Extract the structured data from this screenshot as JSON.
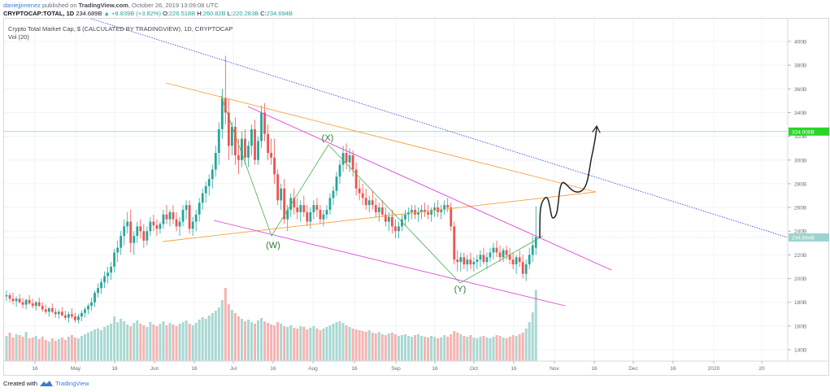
{
  "header": {
    "author": "daniejjimenez",
    "published_text": "published on",
    "site": "TradingView.com",
    "timestamp": ", October 26, 2019 13:09:08 UTC"
  },
  "ohlc": {
    "symbol": "CRYPTOCAP:TOTAL, 1D",
    "last": "234.689B",
    "change": "+8.839B (+3.82%)",
    "o_label": "O:",
    "o": "226.518B",
    "h_label": "H:",
    "h": "260.82B",
    "l_label": "L:",
    "l": "220.283B",
    "c_label": "C:",
    "c": "234.694B"
  },
  "legend": {
    "title": "Crypto Total Market Cap, $ (CALCULATED BY TRADINGVIEW), 1D, CRYPTOCAP",
    "volume": "Vol (20)"
  },
  "footer": {
    "created_with": "Created with",
    "brand": "TradingView"
  },
  "colors": {
    "up": "#26a69a",
    "down": "#ef5350",
    "vol_up": "#a8d8d2",
    "vol_down": "#f6b3b1",
    "orange": "#f7a13a",
    "magenta": "#e040d8",
    "blue_dotted": "#3f51d8",
    "wave_green": "#4caf50",
    "target_line": "#7ee37e",
    "target_label": "#27d627",
    "price_label": "#9bd5ce"
  },
  "chart_data": {
    "type": "candlestick",
    "y_axis_ticks": [
      "400B",
      "380B",
      "360B",
      "340B",
      "320B",
      "300B",
      "280B",
      "260B",
      "240B",
      "220B",
      "200B",
      "180B",
      "160B",
      "140B"
    ],
    "x_axis_ticks": [
      "16",
      "May",
      "16",
      "Jun",
      "16",
      "Jul",
      "16",
      "Aug",
      "16",
      "Sep",
      "16",
      "Oct",
      "16",
      "Nov",
      "16",
      "Dec",
      "16",
      "2020",
      "20"
    ],
    "price_labels": {
      "target": "324.008B",
      "current": "234.694B"
    },
    "annotations": [
      "(W)",
      "(X)",
      "(Y)"
    ],
    "ylim": [
      130,
      410
    ],
    "ohlc_series": [
      [
        185,
        190,
        181,
        186
      ],
      [
        186,
        188,
        180,
        183
      ],
      [
        183,
        188,
        178,
        181
      ],
      [
        181,
        185,
        176,
        183
      ],
      [
        183,
        187,
        179,
        180
      ],
      [
        180,
        184,
        175,
        178
      ],
      [
        178,
        183,
        174,
        182
      ],
      [
        182,
        186,
        178,
        179
      ],
      [
        179,
        183,
        175,
        177
      ],
      [
        177,
        181,
        173,
        180
      ],
      [
        180,
        184,
        176,
        177
      ],
      [
        177,
        180,
        172,
        174
      ],
      [
        174,
        178,
        170,
        172
      ],
      [
        172,
        176,
        168,
        175
      ],
      [
        175,
        179,
        171,
        172
      ],
      [
        172,
        175,
        167,
        170
      ],
      [
        170,
        174,
        166,
        172
      ],
      [
        172,
        176,
        168,
        169
      ],
      [
        169,
        173,
        165,
        167
      ],
      [
        167,
        172,
        163,
        170
      ],
      [
        170,
        175,
        166,
        168
      ],
      [
        168,
        171,
        163,
        165
      ],
      [
        165,
        170,
        162,
        168
      ],
      [
        168,
        173,
        164,
        171
      ],
      [
        171,
        176,
        167,
        174
      ],
      [
        174,
        179,
        170,
        177
      ],
      [
        177,
        184,
        173,
        180
      ],
      [
        180,
        190,
        176,
        188
      ],
      [
        188,
        196,
        184,
        192
      ],
      [
        192,
        200,
        187,
        197
      ],
      [
        197,
        206,
        192,
        202
      ],
      [
        202,
        210,
        196,
        205
      ],
      [
        205,
        214,
        199,
        210
      ],
      [
        210,
        225,
        205,
        222
      ],
      [
        222,
        232,
        214,
        226
      ],
      [
        226,
        240,
        220,
        236
      ],
      [
        236,
        250,
        228,
        244
      ],
      [
        244,
        256,
        238,
        248
      ],
      [
        248,
        258,
        222,
        230
      ],
      [
        230,
        240,
        220,
        236
      ],
      [
        236,
        248,
        230,
        244
      ],
      [
        244,
        250,
        234,
        240
      ],
      [
        240,
        246,
        226,
        232
      ],
      [
        232,
        244,
        228,
        240
      ],
      [
        240,
        252,
        236,
        248
      ],
      [
        248,
        254,
        240,
        245
      ],
      [
        245,
        250,
        236,
        242
      ],
      [
        242,
        248,
        238,
        246
      ],
      [
        246,
        258,
        242,
        254
      ],
      [
        254,
        262,
        246,
        250
      ],
      [
        250,
        258,
        244,
        256
      ],
      [
        256,
        262,
        246,
        250
      ],
      [
        250,
        256,
        240,
        244
      ],
      [
        244,
        252,
        236,
        248
      ],
      [
        248,
        262,
        244,
        258
      ],
      [
        258,
        266,
        250,
        262
      ],
      [
        262,
        266,
        238,
        242
      ],
      [
        242,
        252,
        236,
        248
      ],
      [
        248,
        258,
        240,
        254
      ],
      [
        254,
        268,
        248,
        264
      ],
      [
        264,
        276,
        258,
        272
      ],
      [
        272,
        282,
        264,
        278
      ],
      [
        278,
        288,
        270,
        284
      ],
      [
        284,
        296,
        276,
        292
      ],
      [
        292,
        312,
        286,
        306
      ],
      [
        306,
        332,
        296,
        326
      ],
      [
        326,
        360,
        318,
        352
      ],
      [
        352,
        388,
        330,
        340
      ],
      [
        340,
        352,
        300,
        312
      ],
      [
        312,
        332,
        304,
        328
      ],
      [
        328,
        336,
        296,
        304
      ],
      [
        304,
        318,
        288,
        300
      ],
      [
        300,
        324,
        294,
        318
      ],
      [
        318,
        326,
        296,
        302
      ],
      [
        302,
        316,
        294,
        312
      ],
      [
        312,
        330,
        304,
        326
      ],
      [
        326,
        334,
        296,
        300
      ],
      [
        300,
        320,
        296,
        316
      ],
      [
        316,
        346,
        310,
        340
      ],
      [
        340,
        348,
        316,
        322
      ],
      [
        322,
        330,
        300,
        306
      ],
      [
        306,
        318,
        296,
        302
      ],
      [
        302,
        318,
        280,
        288
      ],
      [
        288,
        292,
        262,
        266
      ],
      [
        266,
        280,
        258,
        276
      ],
      [
        276,
        284,
        246,
        250
      ],
      [
        250,
        262,
        240,
        258
      ],
      [
        258,
        272,
        252,
        268
      ],
      [
        268,
        276,
        254,
        260
      ],
      [
        260,
        268,
        250,
        256
      ],
      [
        256,
        266,
        248,
        262
      ],
      [
        262,
        270,
        252,
        256
      ],
      [
        256,
        262,
        244,
        248
      ],
      [
        248,
        260,
        242,
        256
      ],
      [
        256,
        266,
        250,
        262
      ],
      [
        262,
        268,
        252,
        258
      ],
      [
        258,
        262,
        246,
        250
      ],
      [
        250,
        258,
        244,
        254
      ],
      [
        254,
        262,
        250,
        258
      ],
      [
        258,
        272,
        254,
        268
      ],
      [
        268,
        278,
        262,
        274
      ],
      [
        274,
        290,
        270,
        286
      ],
      [
        286,
        300,
        280,
        296
      ],
      [
        296,
        312,
        290,
        306
      ],
      [
        306,
        314,
        292,
        298
      ],
      [
        298,
        310,
        290,
        304
      ],
      [
        304,
        308,
        286,
        292
      ],
      [
        292,
        298,
        270,
        276
      ],
      [
        276,
        284,
        266,
        272
      ],
      [
        272,
        280,
        262,
        268
      ],
      [
        268,
        276,
        258,
        262
      ],
      [
        262,
        270,
        256,
        266
      ],
      [
        266,
        274,
        258,
        262
      ],
      [
        262,
        268,
        252,
        256
      ],
      [
        256,
        264,
        248,
        260
      ],
      [
        260,
        266,
        252,
        254
      ],
      [
        254,
        260,
        244,
        248
      ],
      [
        248,
        256,
        240,
        252
      ],
      [
        252,
        258,
        238,
        244
      ],
      [
        244,
        250,
        234,
        240
      ],
      [
        240,
        248,
        234,
        244
      ],
      [
        244,
        254,
        240,
        250
      ],
      [
        250,
        258,
        244,
        254
      ],
      [
        254,
        260,
        248,
        256
      ],
      [
        256,
        262,
        250,
        258
      ],
      [
        258,
        262,
        250,
        254
      ],
      [
        254,
        260,
        248,
        256
      ],
      [
        256,
        262,
        250,
        258
      ],
      [
        258,
        264,
        252,
        256
      ],
      [
        256,
        262,
        250,
        254
      ],
      [
        254,
        260,
        248,
        258
      ],
      [
        258,
        264,
        252,
        260
      ],
      [
        260,
        266,
        252,
        256
      ],
      [
        256,
        262,
        250,
        258
      ],
      [
        258,
        266,
        254,
        262
      ],
      [
        262,
        268,
        256,
        260
      ],
      [
        260,
        264,
        240,
        244
      ],
      [
        244,
        248,
        212,
        216
      ],
      [
        216,
        224,
        206,
        214
      ],
      [
        214,
        222,
        206,
        218
      ],
      [
        218,
        222,
        208,
        212
      ],
      [
        212,
        220,
        206,
        216
      ],
      [
        216,
        222,
        208,
        212
      ],
      [
        212,
        218,
        206,
        214
      ],
      [
        214,
        220,
        208,
        216
      ],
      [
        216,
        224,
        210,
        220
      ],
      [
        220,
        226,
        212,
        214
      ],
      [
        214,
        222,
        208,
        218
      ],
      [
        218,
        226,
        214,
        222
      ],
      [
        222,
        230,
        216,
        226
      ],
      [
        226,
        232,
        218,
        222
      ],
      [
        222,
        228,
        214,
        218
      ],
      [
        218,
        226,
        214,
        224
      ],
      [
        224,
        228,
        216,
        220
      ],
      [
        220,
        226,
        212,
        216
      ],
      [
        216,
        222,
        208,
        212
      ],
      [
        212,
        220,
        204,
        218
      ],
      [
        218,
        224,
        210,
        214
      ],
      [
        214,
        220,
        200,
        204
      ],
      [
        204,
        216,
        198,
        212
      ],
      [
        212,
        226,
        208,
        220
      ],
      [
        220,
        236,
        214,
        228
      ],
      [
        226,
        261,
        220,
        235
      ]
    ],
    "volume_series": [
      62,
      70,
      58,
      66,
      64,
      60,
      72,
      56,
      58,
      62,
      54,
      60,
      52,
      48,
      56,
      50,
      54,
      58,
      52,
      60,
      64,
      58,
      56,
      62,
      66,
      70,
      74,
      78,
      80,
      76,
      84,
      88,
      92,
      110,
      96,
      104,
      98,
      90,
      86,
      94,
      100,
      92,
      88,
      84,
      96,
      90,
      86,
      92,
      98,
      88,
      94,
      90,
      86,
      92,
      96,
      100,
      92,
      88,
      94,
      102,
      108,
      104,
      112,
      118,
      124,
      132,
      150,
      180,
      140,
      126,
      118,
      110,
      104,
      98,
      102,
      96,
      92,
      100,
      106,
      98,
      94,
      90,
      88,
      96,
      92,
      86,
      84,
      88,
      82,
      80,
      86,
      84,
      78,
      82,
      86,
      80,
      76,
      80,
      84,
      88,
      92,
      96,
      98,
      94,
      88,
      84,
      80,
      78,
      76,
      74,
      72,
      76,
      70,
      68,
      72,
      66,
      64,
      68,
      70,
      66,
      62,
      64,
      66,
      62,
      60,
      64,
      66,
      62,
      60,
      58,
      62,
      60,
      56,
      58,
      64,
      60,
      66,
      74,
      70,
      66,
      62,
      60,
      64,
      58,
      56,
      60,
      62,
      58,
      56,
      60,
      64,
      62,
      58,
      56,
      60,
      64,
      62,
      66,
      70,
      80,
      96,
      120,
      175
    ]
  }
}
